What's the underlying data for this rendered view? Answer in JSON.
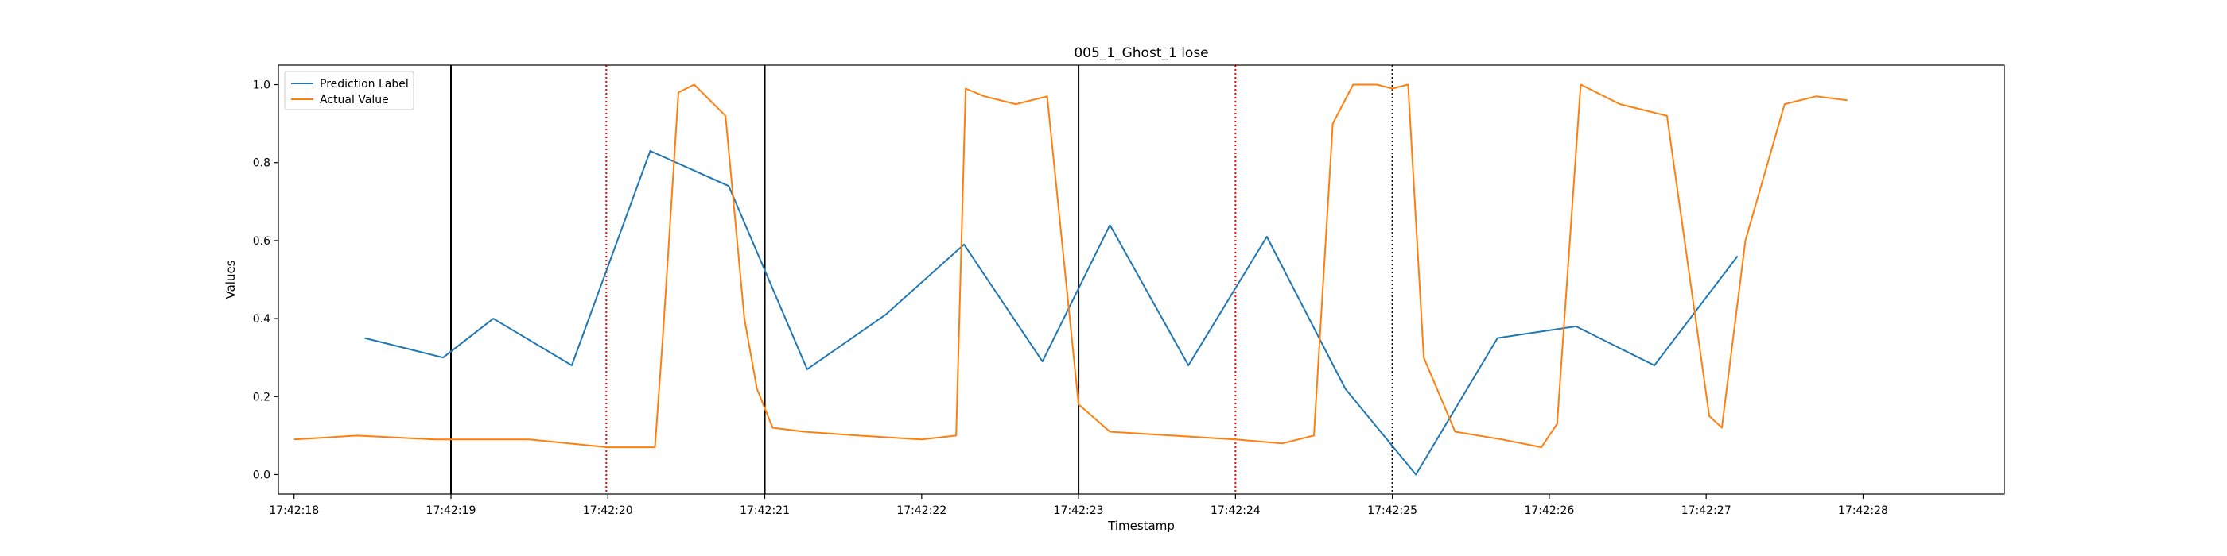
{
  "chart_data": {
    "type": "line",
    "title": "005_1_Ghost_1 lose",
    "xlabel": "Timestamp",
    "ylabel": "Values",
    "xlim": [
      -0.1,
      10.9
    ],
    "ylim": [
      -0.05,
      1.05
    ],
    "x_ticks": [
      {
        "value": 0,
        "label": "17:42:18"
      },
      {
        "value": 1,
        "label": "17:42:19"
      },
      {
        "value": 2,
        "label": "17:42:20"
      },
      {
        "value": 3,
        "label": "17:42:21"
      },
      {
        "value": 4,
        "label": "17:42:22"
      },
      {
        "value": 5,
        "label": "17:42:23"
      },
      {
        "value": 6,
        "label": "17:42:24"
      },
      {
        "value": 7,
        "label": "17:42:25"
      },
      {
        "value": 8,
        "label": "17:42:26"
      },
      {
        "value": 9,
        "label": "17:42:27"
      },
      {
        "value": 10,
        "label": "17:42:28"
      }
    ],
    "y_ticks": [
      0.0,
      0.2,
      0.4,
      0.6,
      0.8,
      1.0
    ],
    "y_tick_labels": [
      "0.0",
      "0.2",
      "0.4",
      "0.6",
      "0.8",
      "1.0"
    ],
    "legend": {
      "location": "upper-left",
      "entries": [
        "Prediction Label",
        "Actual Value"
      ]
    },
    "grid": false,
    "series": [
      {
        "name": "Prediction Label",
        "color": "#1f77b4",
        "x": [
          0.45,
          0.95,
          1.27,
          1.77,
          2.27,
          2.77,
          3.27,
          3.77,
          4.27,
          4.77,
          5.2,
          5.7,
          6.2,
          6.7,
          7.15,
          7.67,
          8.17,
          8.67,
          9.2
        ],
        "y": [
          0.35,
          0.3,
          0.4,
          0.28,
          0.83,
          0.74,
          0.27,
          0.41,
          0.59,
          0.29,
          0.64,
          0.28,
          0.61,
          0.22,
          0.0,
          0.35,
          0.38,
          0.28,
          0.56
        ]
      },
      {
        "name": "Actual Value",
        "color": "#ff7f0e",
        "x": [
          0.0,
          0.4,
          0.9,
          1.5,
          2.0,
          2.3,
          2.35,
          2.45,
          2.55,
          2.75,
          2.87,
          2.95,
          3.05,
          3.25,
          3.6,
          4.0,
          4.22,
          4.28,
          4.4,
          4.6,
          4.8,
          5.0,
          5.2,
          5.6,
          6.0,
          6.3,
          6.5,
          6.62,
          6.75,
          6.9,
          7.0,
          7.1,
          7.2,
          7.4,
          7.7,
          7.95,
          8.05,
          8.2,
          8.45,
          8.75,
          8.95,
          9.02,
          9.1,
          9.25,
          9.5,
          9.7,
          9.9
        ],
        "y": [
          0.09,
          0.1,
          0.09,
          0.09,
          0.07,
          0.07,
          0.35,
          0.98,
          1.0,
          0.92,
          0.4,
          0.22,
          0.12,
          0.11,
          0.1,
          0.09,
          0.1,
          0.99,
          0.97,
          0.95,
          0.97,
          0.18,
          0.11,
          0.1,
          0.09,
          0.08,
          0.1,
          0.9,
          1.0,
          1.0,
          0.99,
          1.0,
          0.3,
          0.11,
          0.09,
          0.07,
          0.13,
          1.0,
          0.95,
          0.92,
          0.35,
          0.15,
          0.12,
          0.6,
          0.95,
          0.97,
          0.96
        ]
      }
    ],
    "vlines": [
      {
        "x": 1.0,
        "style": "solid",
        "color": "#000000"
      },
      {
        "x": 1.99,
        "style": "dotted",
        "color": "#ff0000"
      },
      {
        "x": 3.0,
        "style": "solid",
        "color": "#000000"
      },
      {
        "x": 5.0,
        "style": "solid",
        "color": "#000000"
      },
      {
        "x": 6.0,
        "style": "dotted",
        "color": "#ff0000"
      },
      {
        "x": 7.0,
        "style": "dotted",
        "color": "#000000"
      }
    ]
  }
}
